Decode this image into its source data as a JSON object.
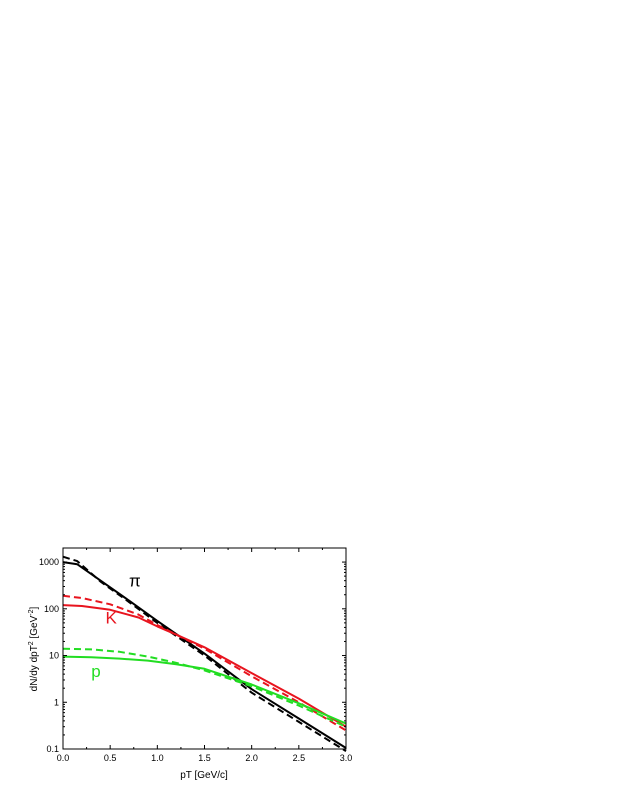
{
  "chart_data": {
    "type": "line",
    "title": "",
    "xlabel": "pT [GeV/c]",
    "ylabel": {
      "main": "dN/dy dpT",
      "sup": "2",
      "unit_open": " [GeV",
      "unit_sup": "-2",
      "unit_close": "]"
    },
    "xlim": [
      0.0,
      3.0
    ],
    "ylim": [
      0.1,
      2000
    ],
    "yscale": "log",
    "grid": false,
    "legend": "none",
    "x_ticks": [
      "0.0",
      "0.5",
      "1.0",
      "1.5",
      "2.0",
      "2.5",
      "3.0"
    ],
    "x_tick_values": [
      0.0,
      0.5,
      1.0,
      1.5,
      2.0,
      2.5,
      3.0
    ],
    "y_ticks": [
      "0.1",
      "1",
      "10",
      "100",
      "1000"
    ],
    "y_tick_values": [
      0.1,
      1,
      10,
      100,
      1000
    ],
    "annotations": [
      {
        "text": "π",
        "x": 0.7,
        "y": 300,
        "color": "#000000"
      },
      {
        "text": "K",
        "x": 0.45,
        "y": 48,
        "color": "#e8141e"
      },
      {
        "text": "p",
        "x": 0.3,
        "y": 3.5,
        "color": "#22dd22"
      }
    ],
    "series": [
      {
        "color": "#000000",
        "dash": false,
        "x": [
          0.0,
          0.15,
          0.4,
          0.7,
          1.0,
          1.5,
          2.0,
          2.5,
          3.0
        ],
        "y": [
          1000,
          900,
          400,
          150,
          55,
          11,
          1.9,
          0.45,
          0.105
        ]
      },
      {
        "color": "#000000",
        "dash": true,
        "x": [
          0.0,
          0.15,
          0.4,
          0.7,
          1.0,
          1.5,
          2.0,
          2.5,
          3.0
        ],
        "y": [
          1300,
          1050,
          380,
          140,
          50,
          10,
          1.6,
          0.38,
          0.09
        ]
      },
      {
        "color": "#e8141e",
        "dash": false,
        "x": [
          0.0,
          0.2,
          0.5,
          0.8,
          1.0,
          1.2,
          1.5,
          2.0,
          2.5,
          3.0
        ],
        "y": [
          120,
          115,
          95,
          65,
          42,
          28,
          15,
          4.2,
          1.2,
          0.3
        ]
      },
      {
        "color": "#e8141e",
        "dash": true,
        "x": [
          0.0,
          0.2,
          0.5,
          0.8,
          1.0,
          1.2,
          1.5,
          2.0,
          2.5,
          3.0
        ],
        "y": [
          190,
          170,
          125,
          75,
          45,
          28,
          14,
          3.6,
          1.0,
          0.25
        ]
      },
      {
        "color": "#22dd22",
        "dash": false,
        "x": [
          0.0,
          0.3,
          0.6,
          0.9,
          1.2,
          1.5,
          2.0,
          2.5,
          3.0
        ],
        "y": [
          9.5,
          9.2,
          8.6,
          7.8,
          6.5,
          5.2,
          2.4,
          0.95,
          0.35
        ]
      },
      {
        "color": "#22dd22",
        "dash": true,
        "x": [
          0.0,
          0.3,
          0.6,
          0.9,
          1.2,
          1.5,
          2.0,
          2.5,
          3.0
        ],
        "y": [
          14,
          13.5,
          12,
          9.5,
          7,
          4.8,
          2.2,
          0.85,
          0.3
        ]
      }
    ]
  }
}
